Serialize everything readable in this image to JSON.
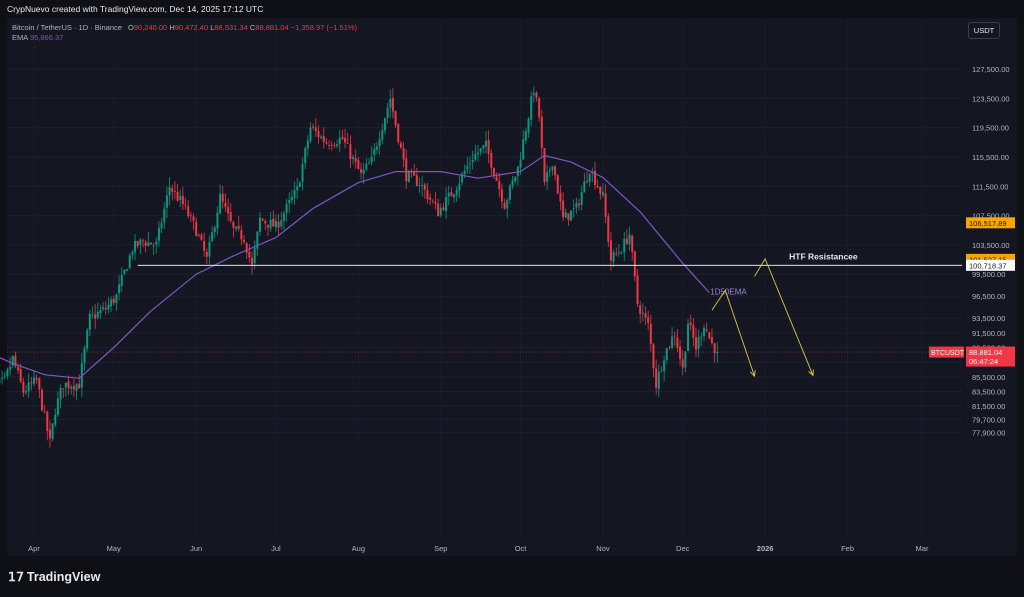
{
  "header": {
    "credit": "CrypNuevo created with TradingView.com, Dec 14, 2025 17:12 UTC"
  },
  "legend": {
    "symbol_line": "Bitcoin / TetherUS · 1D · Binance",
    "o_label": "O",
    "o_value": "90,240.00",
    "h_label": "H",
    "h_value": "90,472.40",
    "l_label": "L",
    "l_value": "88,531.34",
    "c_label": "C",
    "c_value": "88,881.04",
    "change": "−1,358.97 (−1.51%)",
    "ema_label": "EMA",
    "ema_value": "95,866.37"
  },
  "currency_button": "USDT",
  "footer": {
    "brand": "TradingView",
    "logo_icon": "tradingview-logo-icon"
  },
  "colors": {
    "up": "#089981",
    "down": "#f23645",
    "ema": "#7e57c2",
    "annotation": "#d9c84a",
    "resistance": "#ffffff"
  },
  "chart_data": {
    "type": "candlestick",
    "title": "Bitcoin / TetherUS · 1D · Binance",
    "x_tick_labels": [
      "Apr",
      "May",
      "Jun",
      "Jul",
      "Aug",
      "Sep",
      "Oct",
      "Nov",
      "Dec",
      "2026",
      "Feb",
      "Mar"
    ],
    "y_tick_labels": [
      "127,500.00",
      "123,500.00",
      "119,500.00",
      "115,500.00",
      "111,500.00",
      "107,500.00",
      "103,500.00",
      "99,500.00",
      "96,500.00",
      "93,500.00",
      "91,500.00",
      "89,500.00",
      "87,500.00",
      "85,500.00",
      "83,500.00",
      "81,500.00",
      "79,700.00",
      "77,900.00"
    ],
    "ylim": [
      76000,
      132000
    ],
    "price_labels": [
      {
        "text": "106,517.89",
        "value": 106517.89,
        "style": "orange"
      },
      {
        "text": "101,527.15",
        "value": 101527.15,
        "style": "orange"
      },
      {
        "text": "100,718.37",
        "value": 100718.37,
        "style": "white"
      },
      {
        "text": "88,881.04",
        "value": 88881.04,
        "style": "red"
      },
      {
        "text": "06:47:24",
        "value": 88100,
        "style": "red"
      }
    ],
    "symbol_tag": "BTCUSDT",
    "last_price": 88881.04,
    "resistance": {
      "value": 100718.37,
      "label": "HTF Resistancee"
    },
    "ema_label": "1D50EMA",
    "ohlc_keypoints": [
      [
        "2025-03-14",
        82500
      ],
      [
        "2025-03-17",
        84000
      ],
      [
        "2025-03-21",
        85000
      ],
      [
        "2025-03-24",
        88000
      ],
      [
        "2025-03-28",
        83500
      ],
      [
        "2025-04-02",
        85000
      ],
      [
        "2025-04-07",
        76500
      ],
      [
        "2025-04-09",
        81000
      ],
      [
        "2025-04-12",
        84500
      ],
      [
        "2025-04-18",
        84500
      ],
      [
        "2025-04-22",
        93500
      ],
      [
        "2025-04-28",
        94800
      ],
      [
        "2025-05-02",
        96500
      ],
      [
        "2025-05-08",
        103000
      ],
      [
        "2025-05-12",
        104000
      ],
      [
        "2025-05-17",
        103500
      ],
      [
        "2025-05-22",
        111500
      ],
      [
        "2025-05-27",
        109000
      ],
      [
        "2025-06-01",
        105500
      ],
      [
        "2025-06-05",
        101500
      ],
      [
        "2025-06-10",
        110000
      ],
      [
        "2025-06-15",
        105500
      ],
      [
        "2025-06-19",
        104500
      ],
      [
        "2025-06-22",
        100500
      ],
      [
        "2025-06-25",
        107000
      ],
      [
        "2025-07-01",
        106000
      ],
      [
        "2025-07-09",
        111000
      ],
      [
        "2025-07-14",
        119500
      ],
      [
        "2025-07-20",
        117500
      ],
      [
        "2025-07-26",
        118000
      ],
      [
        "2025-08-02",
        113000
      ],
      [
        "2025-08-06",
        115000
      ],
      [
        "2025-08-13",
        123500
      ],
      [
        "2025-08-19",
        113000
      ],
      [
        "2025-08-24",
        112000
      ],
      [
        "2025-08-31",
        108000
      ],
      [
        "2025-09-06",
        111000
      ],
      [
        "2025-09-13",
        115500
      ],
      [
        "2025-09-18",
        117000
      ],
      [
        "2025-09-25",
        109000
      ],
      [
        "2025-09-30",
        114000
      ],
      [
        "2025-10-06",
        124800
      ],
      [
        "2025-10-08",
        121000
      ],
      [
        "2025-10-10",
        111500
      ],
      [
        "2025-10-13",
        115000
      ],
      [
        "2025-10-17",
        107000
      ],
      [
        "2025-10-22",
        108500
      ],
      [
        "2025-10-27",
        114000
      ],
      [
        "2025-11-01",
        110000
      ],
      [
        "2025-11-04",
        101500
      ],
      [
        "2025-11-08",
        103000
      ],
      [
        "2025-11-11",
        105000
      ],
      [
        "2025-11-14",
        95500
      ],
      [
        "2025-11-18",
        92500
      ],
      [
        "2025-11-21",
        84500
      ],
      [
        "2025-11-24",
        88500
      ],
      [
        "2025-11-28",
        91500
      ],
      [
        "2025-12-01",
        86500
      ],
      [
        "2025-12-03",
        93000
      ],
      [
        "2025-12-06",
        89500
      ],
      [
        "2025-12-09",
        92700
      ],
      [
        "2025-12-12",
        90000
      ],
      [
        "2025-12-14",
        88881.04
      ]
    ],
    "ema_keypoints": [
      [
        "2025-03-14",
        88900
      ],
      [
        "2025-03-25",
        87200
      ],
      [
        "2025-04-05",
        85800
      ],
      [
        "2025-04-18",
        85300
      ],
      [
        "2025-05-01",
        89500
      ],
      [
        "2025-05-15",
        94500
      ],
      [
        "2025-06-01",
        99500
      ],
      [
        "2025-06-15",
        102000
      ],
      [
        "2025-07-01",
        104500
      ],
      [
        "2025-07-15",
        108500
      ],
      [
        "2025-08-01",
        112000
      ],
      [
        "2025-08-15",
        113500
      ],
      [
        "2025-09-01",
        113500
      ],
      [
        "2025-09-15",
        112600
      ],
      [
        "2025-10-01",
        113500
      ],
      [
        "2025-10-10",
        115700
      ],
      [
        "2025-10-20",
        114800
      ],
      [
        "2025-11-01",
        112700
      ],
      [
        "2025-11-15",
        108000
      ],
      [
        "2025-12-01",
        101000
      ],
      [
        "2025-12-11",
        97000
      ]
    ],
    "annotation_paths": [
      [
        [
          "2025-12-12",
          94600
        ],
        [
          "2025-12-17",
          97300
        ],
        [
          "2025-12-28",
          85600
        ]
      ],
      [
        [
          "2025-12-28",
          99200
        ],
        [
          "2026-01-01",
          101600
        ],
        [
          "2026-01-19",
          85700
        ]
      ]
    ]
  }
}
